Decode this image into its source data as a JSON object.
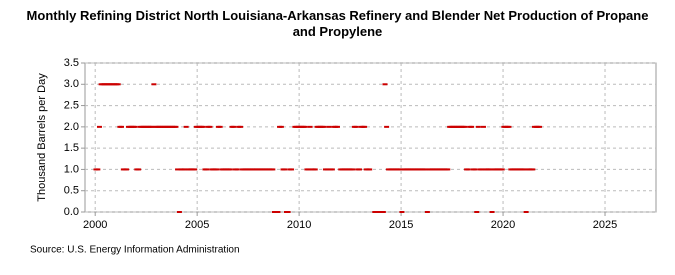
{
  "chart_data": {
    "type": "scatter",
    "title": "Monthly Refining District North Louisiana-Arkansas Refinery and Blender Net Production of Propane and Propylene",
    "y_label": "Thousand Barrels per Day",
    "source": "Source: U.S. Energy Information Administration",
    "xlim": [
      1999.5,
      2027.5
    ],
    "xticks": [
      2000,
      2005,
      2010,
      2015,
      2020,
      2025
    ],
    "ylim": [
      0,
      3.5
    ],
    "yticks": [
      {
        "value": 0,
        "label": "0.0"
      },
      {
        "value": 0.5,
        "label": "0.5"
      },
      {
        "value": 1,
        "label": "1.0"
      },
      {
        "value": 1.5,
        "label": "1.5"
      },
      {
        "value": 2,
        "label": "2.0"
      },
      {
        "value": 2.5,
        "label": "2.5"
      },
      {
        "value": 3,
        "label": "3.0"
      },
      {
        "value": 3.5,
        "label": "3.5"
      }
    ],
    "grid": true,
    "color": "#cc0000",
    "x": [
      2000.04,
      2000.13,
      2000.21,
      2000.29,
      2000.38,
      2000.46,
      2000.54,
      2000.63,
      2000.71,
      2000.79,
      2000.88,
      2000.96,
      2001.04,
      2001.13,
      2001.21,
      2001.29,
      2001.38,
      2001.46,
      2001.54,
      2001.63,
      2001.71,
      2001.79,
      2001.88,
      2001.96,
      2002.04,
      2002.13,
      2002.21,
      2002.29,
      2002.38,
      2002.46,
      2002.54,
      2002.63,
      2002.71,
      2002.79,
      2002.88,
      2002.96,
      2003.04,
      2003.13,
      2003.21,
      2003.29,
      2003.38,
      2003.46,
      2003.54,
      2003.63,
      2003.71,
      2003.79,
      2003.88,
      2003.96,
      2004.04,
      2004.13,
      2004.21,
      2004.29,
      2004.38,
      2004.46,
      2004.54,
      2004.63,
      2004.71,
      2004.79,
      2004.88,
      2004.96,
      2005.04,
      2005.13,
      2005.21,
      2005.29,
      2005.38,
      2005.46,
      2005.54,
      2005.63,
      2005.71,
      2005.79,
      2005.88,
      2005.96,
      2006.04,
      2006.13,
      2006.21,
      2006.29,
      2006.38,
      2006.46,
      2006.54,
      2006.63,
      2006.71,
      2006.79,
      2006.88,
      2006.96,
      2007.04,
      2007.13,
      2007.21,
      2007.29,
      2007.38,
      2007.46,
      2007.54,
      2007.63,
      2007.71,
      2007.79,
      2007.88,
      2007.96,
      2008.04,
      2008.13,
      2008.21,
      2008.29,
      2008.38,
      2008.46,
      2008.54,
      2008.63,
      2008.71,
      2008.79,
      2008.88,
      2008.96,
      2009.04,
      2009.13,
      2009.21,
      2009.29,
      2009.38,
      2009.46,
      2009.54,
      2009.63,
      2009.71,
      2009.79,
      2009.88,
      2009.96,
      2010.04,
      2010.13,
      2010.21,
      2010.29,
      2010.38,
      2010.46,
      2010.54,
      2010.63,
      2010.71,
      2010.79,
      2010.88,
      2010.96,
      2011.04,
      2011.13,
      2011.21,
      2011.29,
      2011.38,
      2011.46,
      2011.54,
      2011.63,
      2011.71,
      2011.79,
      2011.88,
      2011.96,
      2012.04,
      2012.13,
      2012.21,
      2012.29,
      2012.38,
      2012.46,
      2012.54,
      2012.63,
      2012.71,
      2012.79,
      2012.88,
      2012.96,
      2013.04,
      2013.13,
      2013.21,
      2013.29,
      2013.38,
      2013.46,
      2013.54,
      2013.63,
      2013.71,
      2013.79,
      2013.88,
      2013.96,
      2014.04,
      2014.13,
      2014.21,
      2014.29,
      2014.38,
      2014.46,
      2014.54,
      2014.63,
      2014.71,
      2014.79,
      2014.88,
      2014.96,
      2015.04,
      2015.13,
      2015.21,
      2015.29,
      2015.38,
      2015.46,
      2015.54,
      2015.63,
      2015.71,
      2015.79,
      2015.88,
      2015.96,
      2016.04,
      2016.13,
      2016.21,
      2016.29,
      2016.38,
      2016.46,
      2016.54,
      2016.63,
      2016.71,
      2016.79,
      2016.88,
      2016.96,
      2017.04,
      2017.13,
      2017.21,
      2017.29,
      2017.38,
      2017.46,
      2017.54,
      2017.63,
      2017.71,
      2017.79,
      2017.88,
      2017.96,
      2018.04,
      2018.13,
      2018.21,
      2018.29,
      2018.38,
      2018.46,
      2018.54,
      2018.63,
      2018.71,
      2018.79,
      2018.88,
      2018.96,
      2019.04,
      2019.13,
      2019.21,
      2019.29,
      2019.38,
      2019.46,
      2019.54,
      2019.63,
      2019.71,
      2019.79,
      2019.88,
      2019.96,
      2020.04,
      2020.13,
      2020.21,
      2020.29,
      2020.38,
      2020.46,
      2020.54,
      2020.63,
      2020.71,
      2020.79,
      2020.88,
      2020.96,
      2021.04,
      2021.13,
      2021.21,
      2021.29,
      2021.38,
      2021.46,
      2021.54,
      2021.63,
      2021.71,
      2021.79,
      2021.88,
      2021.96
    ],
    "values": [
      1,
      1,
      2,
      3,
      3,
      3,
      3,
      3,
      3,
      3,
      3,
      3,
      3,
      3,
      2,
      2,
      1,
      1,
      1,
      2,
      2,
      2,
      2,
      2,
      1,
      1,
      2,
      2,
      2,
      2,
      2,
      2,
      2,
      2,
      3,
      2,
      2,
      2,
      2,
      2,
      2,
      2,
      2,
      2,
      2,
      2,
      2,
      2,
      1,
      0,
      1,
      1,
      1,
      2,
      1,
      1,
      1,
      1,
      1,
      2,
      2,
      2,
      2,
      2,
      1,
      1,
      2,
      2,
      1,
      1,
      1,
      1,
      2,
      2,
      1,
      1,
      1,
      1,
      1,
      1,
      2,
      2,
      1,
      1,
      2,
      2,
      1,
      1,
      1,
      1,
      1,
      1,
      1,
      1,
      1,
      1,
      1,
      1,
      1,
      1,
      1,
      1,
      1,
      1,
      1,
      0,
      0,
      0,
      2,
      2,
      1,
      1,
      0,
      0,
      1,
      1,
      null,
      2,
      2,
      2,
      2,
      2,
      2,
      2,
      1,
      1,
      2,
      1,
      1,
      1,
      2,
      2,
      2,
      2,
      2,
      1,
      1,
      2,
      1,
      1,
      2,
      2,
      2,
      null,
      1,
      1,
      1,
      1,
      1,
      1,
      1,
      1,
      2,
      2,
      1,
      1,
      2,
      2,
      2,
      1,
      1,
      1,
      null,
      null,
      0,
      0,
      0,
      0,
      0,
      0,
      3,
      2,
      1,
      1,
      1,
      1,
      1,
      1,
      1,
      1,
      0,
      1,
      1,
      1,
      1,
      1,
      1,
      1,
      1,
      1,
      1,
      1,
      1,
      1,
      1,
      0,
      1,
      1,
      1,
      1,
      1,
      1,
      1,
      1,
      1,
      1,
      1,
      1,
      2,
      2,
      2,
      2,
      2,
      2,
      2,
      2,
      2,
      2,
      1,
      1,
      2,
      2,
      1,
      1,
      0,
      2,
      1,
      1,
      2,
      1,
      1,
      1,
      1,
      0,
      1,
      1,
      1,
      1,
      1,
      1,
      2,
      2,
      2,
      2,
      1,
      1,
      1,
      1,
      1,
      1,
      1,
      1,
      1,
      0,
      1,
      1,
      1,
      1,
      2,
      2,
      2,
      2,
      null,
      null
    ]
  }
}
